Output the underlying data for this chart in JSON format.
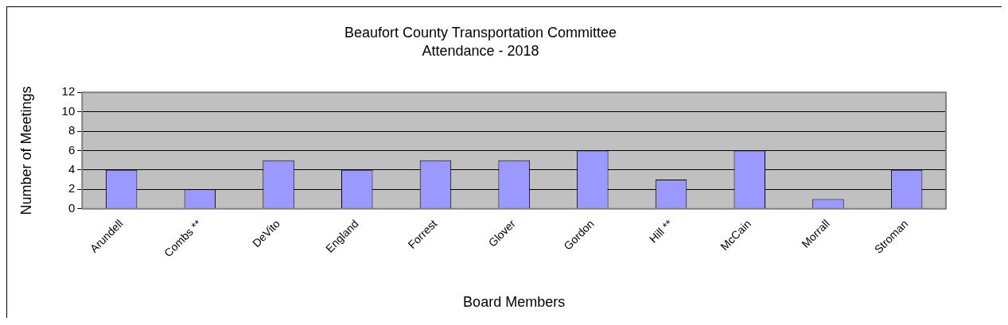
{
  "chart_data": {
    "type": "bar",
    "title": "Beaufort County Transportation Committee",
    "subtitle": "Attendance - 2018",
    "xlabel": "Board Members",
    "ylabel": "Number of Meetings",
    "categories": [
      "Arundell",
      "Combs **",
      "DeVito",
      "England",
      "Forrest",
      "Glover",
      "Gordon",
      "Hill **",
      "McCain",
      "Morrall",
      "Stroman"
    ],
    "values": [
      4,
      2,
      5,
      4,
      5,
      5,
      6,
      3,
      6,
      1,
      4
    ],
    "color": "#9999ff",
    "ylim": [
      0,
      12
    ],
    "yticks": [
      0,
      2,
      4,
      6,
      8,
      10,
      12
    ],
    "grid": "y",
    "legend": false
  }
}
